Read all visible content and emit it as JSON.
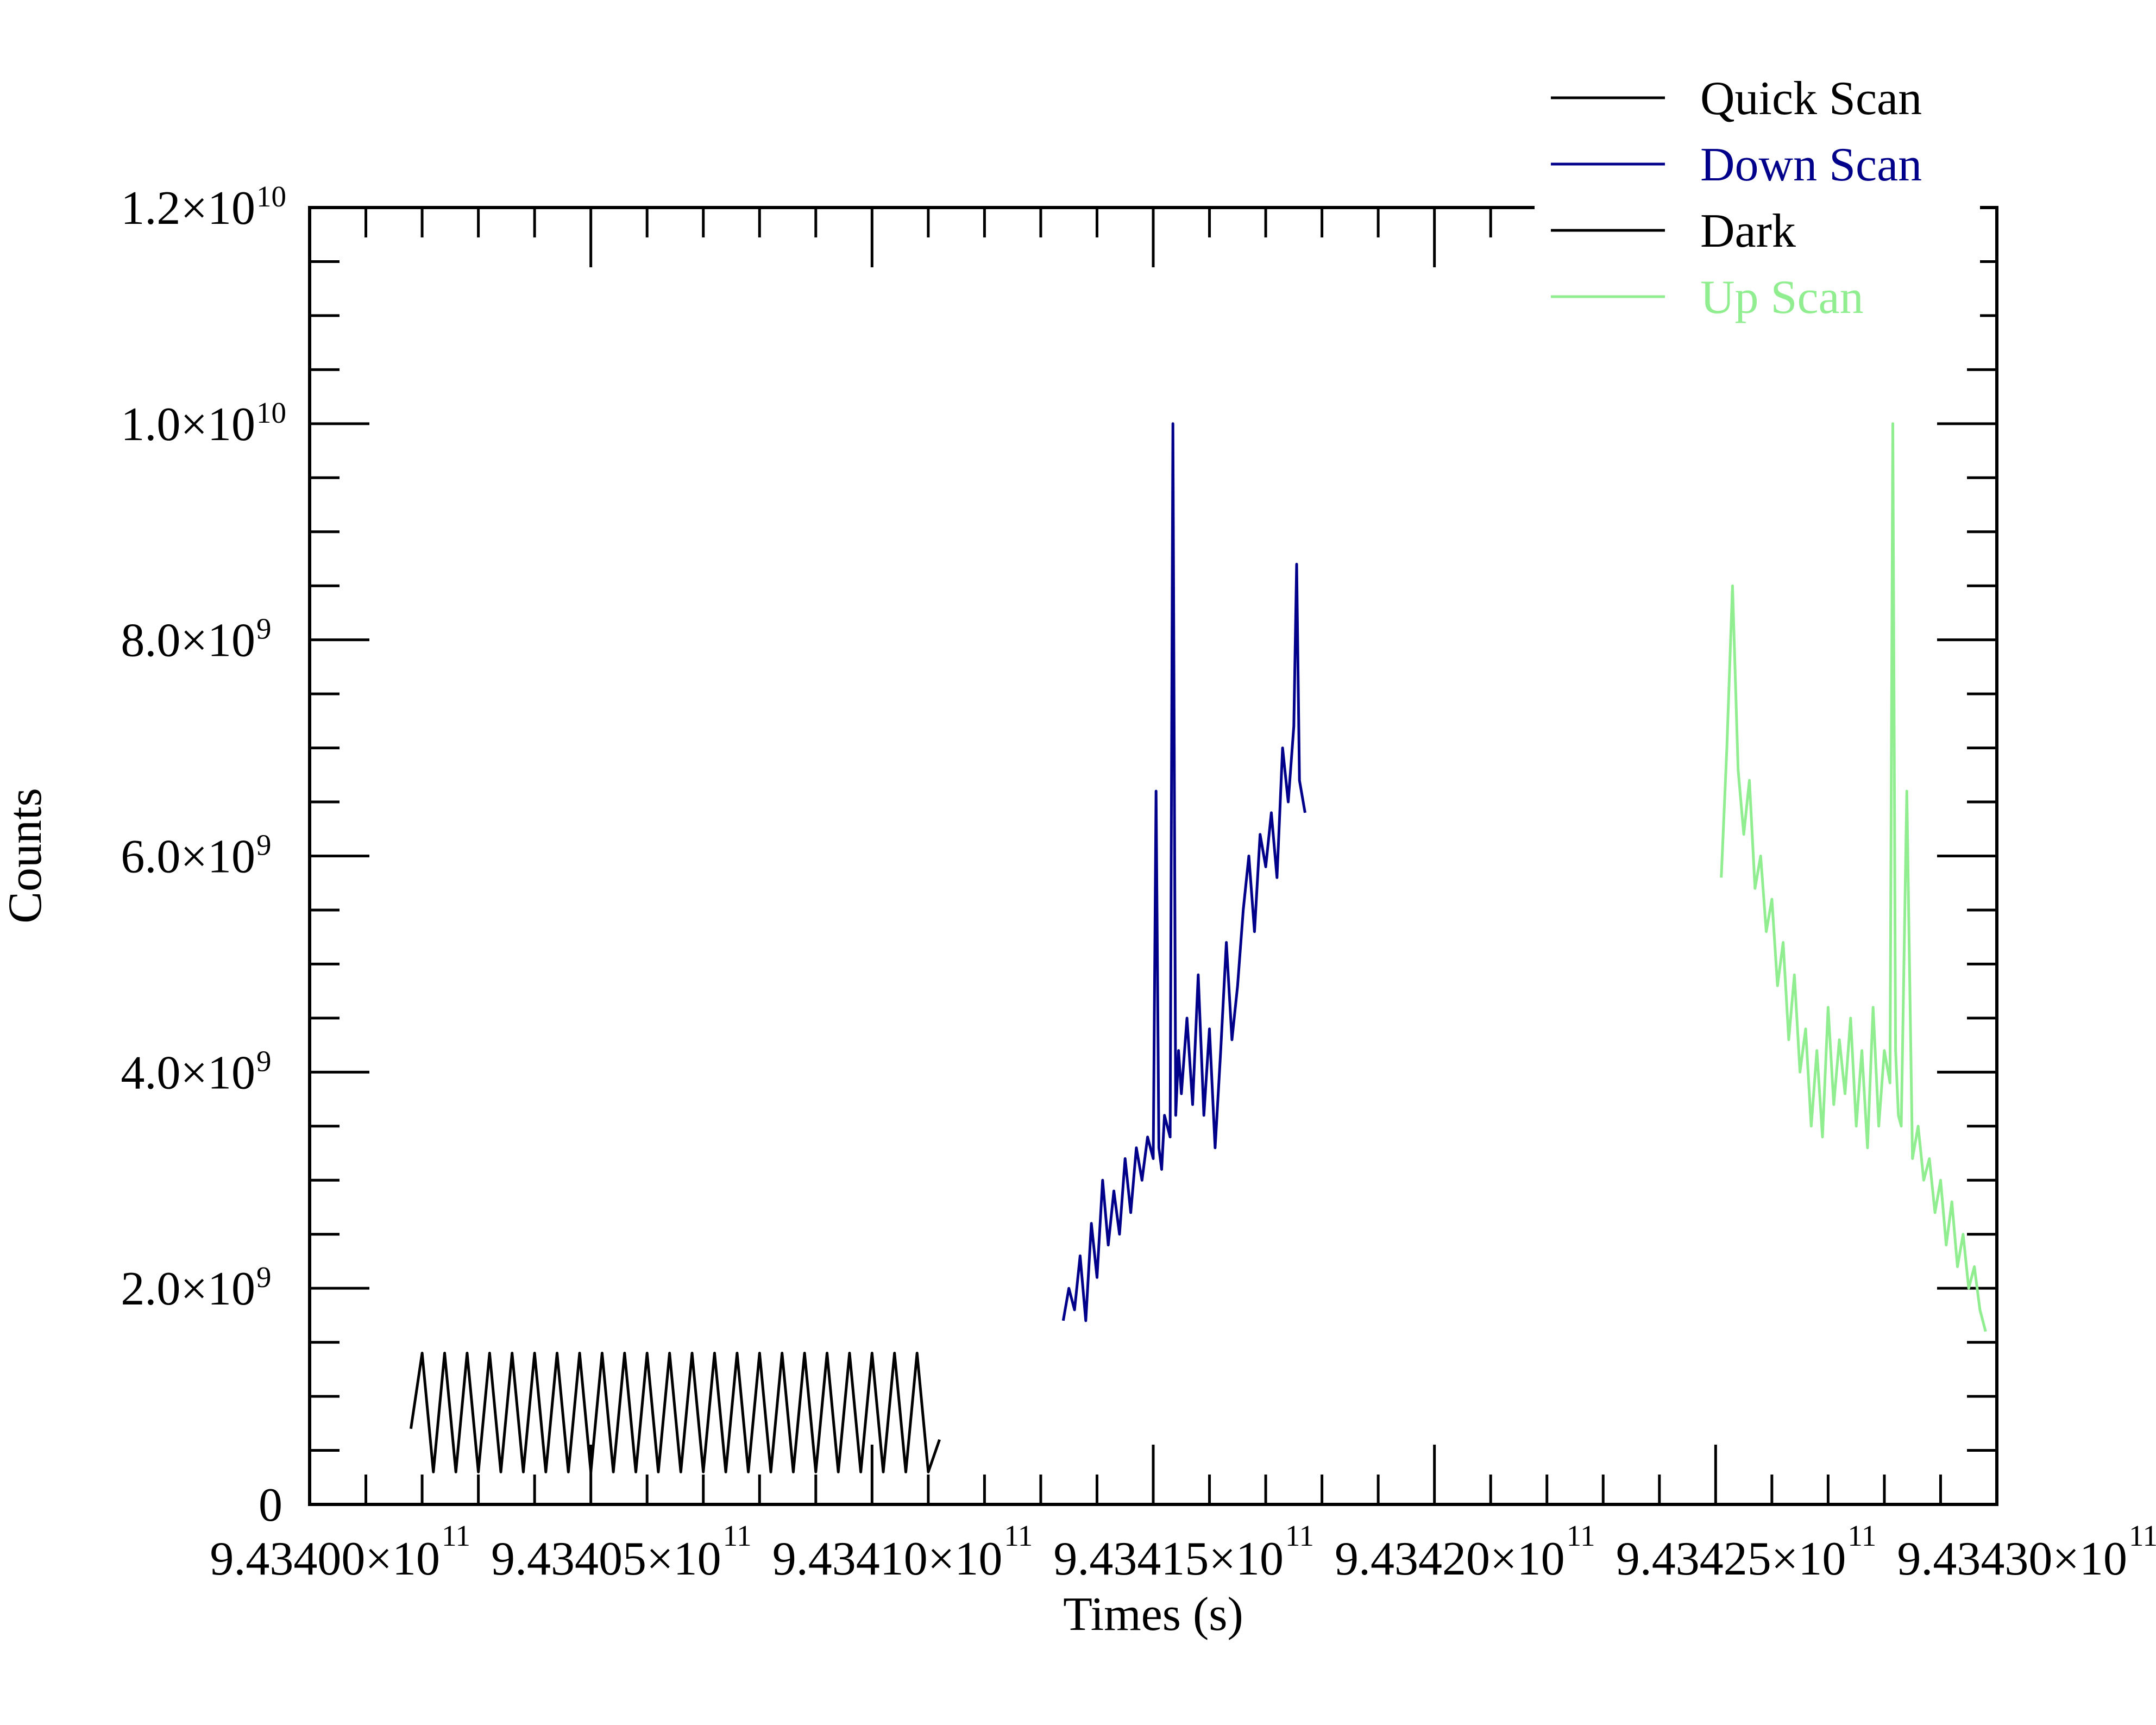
{
  "chart_data": {
    "type": "line",
    "title": "",
    "xlabel": "Times (s)",
    "ylabel": "Counts",
    "xlim": [
      943400000000,
      943430000000
    ],
    "ylim": [
      0,
      12000000000
    ],
    "grid": false,
    "legend_position": "top-right",
    "x_ticks": [
      {
        "value": 943400000000,
        "label": "9.43400×10",
        "exp": "11"
      },
      {
        "value": 943405000000,
        "label": "9.43405×10",
        "exp": "11"
      },
      {
        "value": 943410000000,
        "label": "9.43410×10",
        "exp": "11"
      },
      {
        "value": 943415000000,
        "label": "9.43415×10",
        "exp": "11"
      },
      {
        "value": 943420000000,
        "label": "9.43420×10",
        "exp": "11"
      },
      {
        "value": 943425000000,
        "label": "9.43425×10",
        "exp": "11"
      },
      {
        "value": 943430000000,
        "label": "9.43430×10",
        "exp": "11"
      }
    ],
    "y_ticks": [
      {
        "value": 0,
        "label": "0",
        "exp": ""
      },
      {
        "value": 2000000000,
        "label": "2.0×10",
        "exp": "9"
      },
      {
        "value": 4000000000,
        "label": "4.0×10",
        "exp": "9"
      },
      {
        "value": 6000000000,
        "label": "6.0×10",
        "exp": "9"
      },
      {
        "value": 8000000000,
        "label": "8.0×10",
        "exp": "9"
      },
      {
        "value": 10000000000,
        "label": "1.0×10",
        "exp": "10"
      },
      {
        "value": 12000000000,
        "label": "1.2×10",
        "exp": "10"
      }
    ],
    "series": [
      {
        "name": "Quick Scan",
        "color": "#000000",
        "x": [],
        "y": []
      },
      {
        "name": "Down Scan",
        "color": "#00008b",
        "x": [
          943413400000,
          943413500000,
          943413600000,
          943413700000,
          943413800000,
          943413900000,
          943414000000,
          943414100000,
          943414200000,
          943414300000,
          943414400000,
          943414500000,
          943414600000,
          943414700000,
          943414800000,
          943414900000,
          943415000000,
          943415050000,
          943415100000,
          943415150000,
          943415200000,
          943415300000,
          943415350000,
          943415400000,
          943415450000,
          943415500000,
          943415600000,
          943415700000,
          943415800000,
          943415900000,
          943416000000,
          943416100000,
          943416200000,
          943416300000,
          943416400000,
          943416500000,
          943416600000,
          943416700000,
          943416800000,
          943416900000,
          943417000000,
          943417100000,
          943417200000,
          943417300000,
          943417400000,
          943417500000,
          943417550000,
          943417600000,
          943417700000
        ],
        "y": [
          1700000000,
          2000000000,
          1800000000,
          2300000000,
          1700000000,
          2600000000,
          2100000000,
          3000000000,
          2400000000,
          2900000000,
          2500000000,
          3200000000,
          2700000000,
          3300000000,
          3000000000,
          3400000000,
          3200000000,
          6600000000,
          3300000000,
          3100000000,
          3600000000,
          3400000000,
          10000000000,
          3600000000,
          4200000000,
          3800000000,
          4500000000,
          3700000000,
          4900000000,
          3600000000,
          4400000000,
          3300000000,
          4200000000,
          5200000000,
          4300000000,
          4800000000,
          5500000000,
          6000000000,
          5300000000,
          6200000000,
          5900000000,
          6400000000,
          5800000000,
          7000000000,
          6500000000,
          7200000000,
          8700000000,
          6700000000,
          6400000000
        ]
      },
      {
        "name": "Dark",
        "color": "#000000",
        "x": [
          943401800000,
          943402000000,
          943402200000,
          943402400000,
          943402600000,
          943402800000,
          943403000000,
          943403200000,
          943403400000,
          943403600000,
          943403800000,
          943404000000,
          943404200000,
          943404400000,
          943404600000,
          943404800000,
          943405000000,
          943405200000,
          943405400000,
          943405600000,
          943405800000,
          943406000000,
          943406200000,
          943406400000,
          943406600000,
          943406800000,
          943407000000,
          943407200000,
          943407400000,
          943407600000,
          943407800000,
          943408000000,
          943408200000,
          943408400000,
          943408600000,
          943408800000,
          943409000000,
          943409200000,
          943409400000,
          943409600000,
          943409800000,
          943410000000,
          943410200000,
          943410400000,
          943410600000,
          943410800000,
          943411000000,
          943411200000
        ],
        "y": [
          700000000,
          1400000000,
          300000000,
          1400000000,
          300000000,
          1400000000,
          300000000,
          1400000000,
          300000000,
          1400000000,
          300000000,
          1400000000,
          300000000,
          1400000000,
          300000000,
          1400000000,
          300000000,
          1400000000,
          300000000,
          1400000000,
          300000000,
          1400000000,
          300000000,
          1400000000,
          300000000,
          1400000000,
          300000000,
          1400000000,
          300000000,
          1400000000,
          300000000,
          1400000000,
          300000000,
          1400000000,
          300000000,
          1400000000,
          300000000,
          1400000000,
          300000000,
          1400000000,
          300000000,
          1400000000,
          300000000,
          1400000000,
          300000000,
          1400000000,
          300000000,
          600000000
        ]
      },
      {
        "name": "Up Scan",
        "color": "#90ee90",
        "x": [
          943425100000,
          943425200000,
          943425300000,
          943425400000,
          943425500000,
          943425600000,
          943425700000,
          943425800000,
          943425900000,
          943426000000,
          943426100000,
          943426200000,
          943426300000,
          943426400000,
          943426500000,
          943426600000,
          943426700000,
          943426800000,
          943426900000,
          943427000000,
          943427100000,
          943427200000,
          943427300000,
          943427400000,
          943427500000,
          943427600000,
          943427700000,
          943427800000,
          943427900000,
          943428000000,
          943428100000,
          943428150000,
          943428200000,
          943428250000,
          943428300000,
          943428400000,
          943428500000,
          943428600000,
          943428700000,
          943428800000,
          943428900000,
          943429000000,
          943429100000,
          943429200000,
          943429300000,
          943429400000,
          943429500000,
          943429600000,
          943429700000,
          943429800000
        ],
        "y": [
          5800000000,
          7000000000,
          8500000000,
          6800000000,
          6200000000,
          6700000000,
          5700000000,
          6000000000,
          5300000000,
          5600000000,
          4800000000,
          5200000000,
          4300000000,
          4900000000,
          4000000000,
          4400000000,
          3500000000,
          4200000000,
          3400000000,
          4600000000,
          3700000000,
          4300000000,
          3800000000,
          4500000000,
          3500000000,
          4200000000,
          3300000000,
          4600000000,
          3500000000,
          4200000000,
          3900000000,
          10000000000,
          4200000000,
          3600000000,
          3500000000,
          6600000000,
          3200000000,
          3500000000,
          3000000000,
          3200000000,
          2700000000,
          3000000000,
          2400000000,
          2800000000,
          2200000000,
          2500000000,
          2000000000,
          2200000000,
          1800000000,
          1600000000
        ]
      }
    ]
  }
}
